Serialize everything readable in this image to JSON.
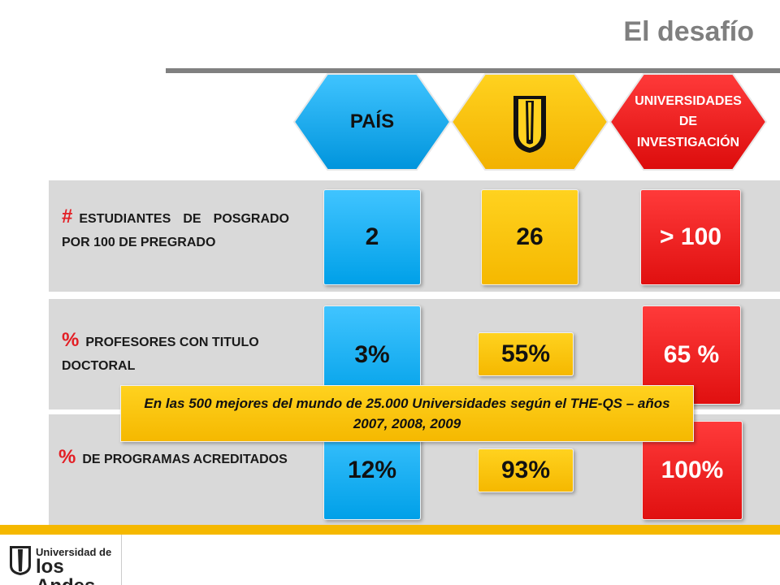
{
  "title": "El desafío",
  "headers": {
    "pais": "PAÍS",
    "investigacion": "UNIVERSIDADES DE INVESTIGACIÓN"
  },
  "rows": [
    {
      "symbol": "#",
      "label": "ESTUDIANTES DE POSGRADO POR 100 DE PREGRADO",
      "pais": "2",
      "uniandes": "26",
      "investigacion": "> 100"
    },
    {
      "symbol": "%",
      "label": "PROFESORES CON TITULO DOCTORAL",
      "pais": "3%",
      "uniandes": "55%",
      "investigacion": "65 %"
    },
    {
      "symbol": "%",
      "label": "DE PROGRAMAS ACREDITADOS",
      "pais": "12%",
      "uniandes": "93%",
      "investigacion": "100%"
    }
  ],
  "note": "En las 500 mejores del mundo  de 25.000 Universidades según el THE-QS – años 2007, 2008, 2009",
  "logo": {
    "line1": "Universidad de",
    "line2": "los Andes"
  },
  "colors": {
    "pais": "#00a0e8",
    "uniandes": "#f5b800",
    "investigacion": "#e01010"
  }
}
